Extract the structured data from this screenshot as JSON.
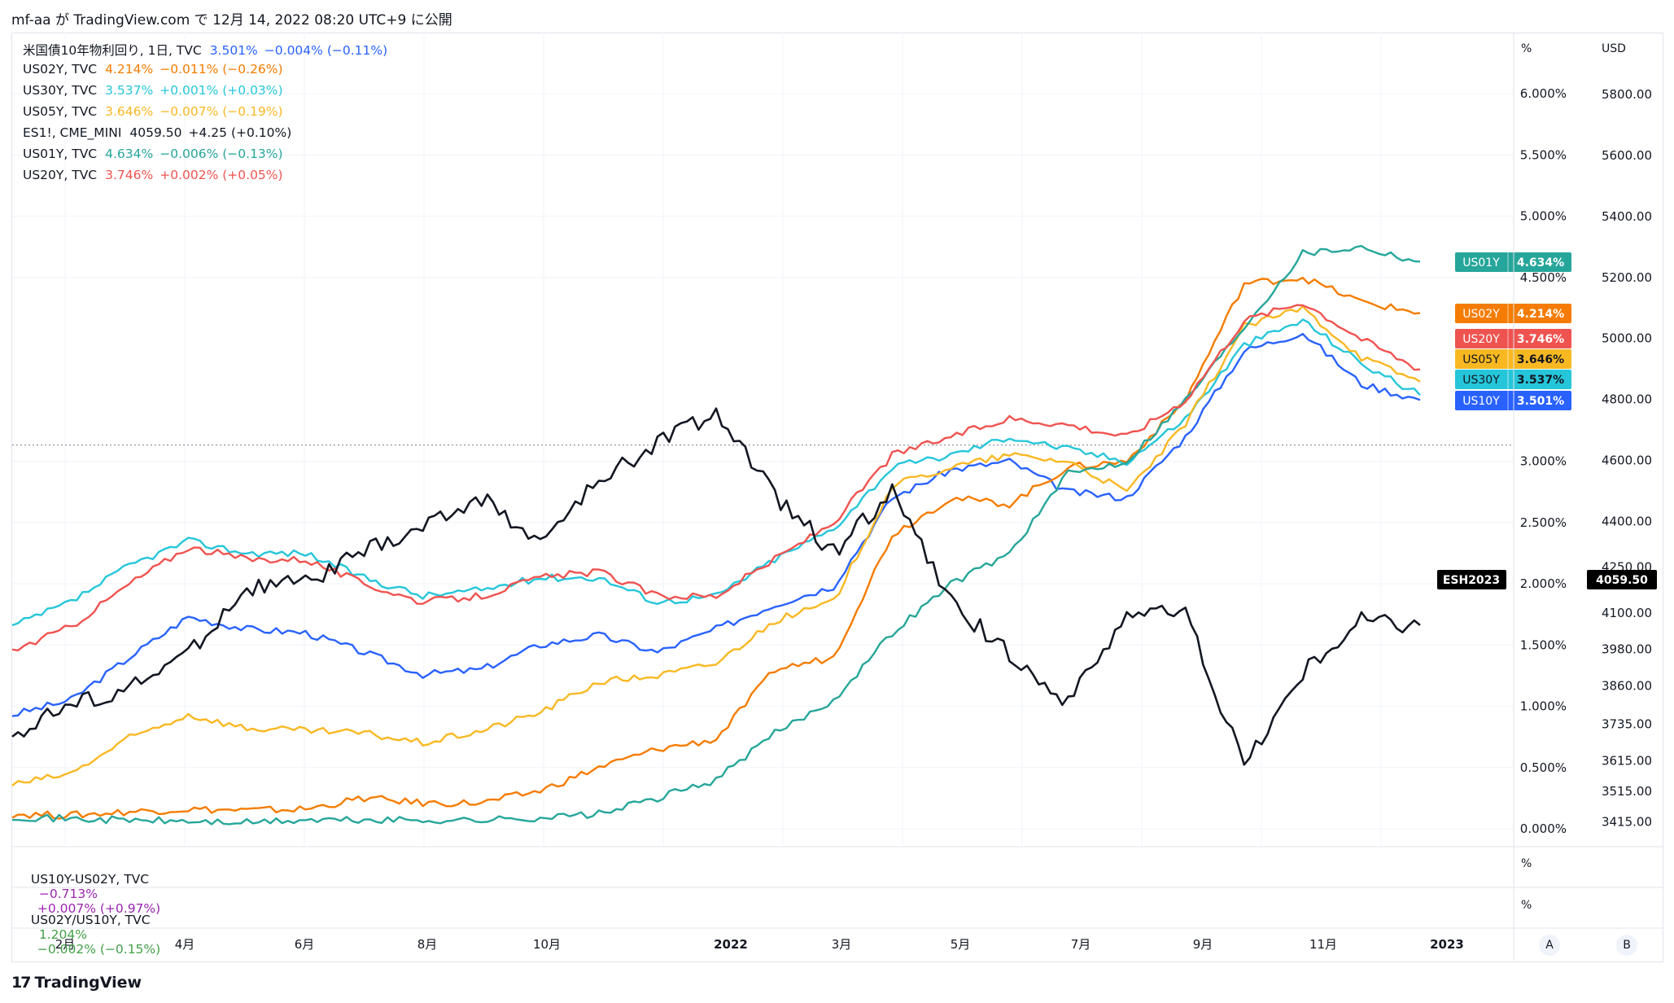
{
  "header": {
    "title": "mf-aa が TradingView.com で 12月 14, 2022 08:20 UTC+9 に公開"
  },
  "legend": [
    {
      "label": "米国債10年物利回り, 1日, TVC",
      "value": "3.501%",
      "change": "−0.004% (−0.11%)",
      "color": "#2962ff"
    },
    {
      "label": "US02Y, TVC",
      "value": "4.214%",
      "change": "−0.011% (−0.26%)",
      "color": "#f57c00"
    },
    {
      "label": "US30Y, TVC",
      "value": "3.537%",
      "change": "+0.001% (+0.03%)",
      "color": "#26c6da"
    },
    {
      "label": "US05Y, TVC",
      "value": "3.646%",
      "change": "−0.007% (−0.19%)",
      "color": "#f9b822"
    },
    {
      "label": "ES1!, CME_MINI",
      "value": "4059.50",
      "change": "+4.25 (+0.10%)",
      "color": "#131722"
    },
    {
      "label": "US01Y, TVC",
      "value": "4.634%",
      "change": "−0.006% (−0.13%)",
      "color": "#26a69a"
    },
    {
      "label": "US20Y, TVC",
      "value": "3.746%",
      "change": "+0.002% (+0.05%)",
      "color": "#ef5350"
    }
  ],
  "panes": [
    {
      "label": "US10Y-US02Y, TVC",
      "value": "−0.713%",
      "change": "+0.007% (+0.97%)",
      "color": "#9c27b0",
      "unit": "%"
    },
    {
      "label": "US02Y/US10Y, TVC",
      "value": "1.204%",
      "change": "−0.002% (−0.15%)",
      "color": "#43a047",
      "unit": "%"
    }
  ],
  "axes": {
    "pct_unit": "%",
    "usd_unit": "USD",
    "pct_ticks": [
      "6.000%",
      "5.500%",
      "5.000%",
      "4.500%",
      "3.000%",
      "2.500%",
      "2.000%",
      "1.500%",
      "1.000%",
      "0.500%",
      "0.000%"
    ],
    "usd_ticks": [
      "5800.00",
      "5600.00",
      "5400.00",
      "5200.00",
      "5000.00",
      "4800.00",
      "4600.00",
      "4400.00",
      "4250.00",
      "4100.00",
      "3980.00",
      "3860.00",
      "3735.00",
      "3615.00",
      "3515.00",
      "3415.00"
    ],
    "x_ticks": [
      "2月",
      "4月",
      "6月",
      "8月",
      "10月",
      "2022",
      "3月",
      "5月",
      "7月",
      "9月",
      "11月",
      "2023"
    ]
  },
  "tags": [
    {
      "name": "US01Y",
      "value": "4.634%",
      "color": "#26a69a",
      "text": "#ffffff"
    },
    {
      "name": "US02Y",
      "value": "4.214%",
      "color": "#f57c00",
      "text": "#ffffff"
    },
    {
      "name": "US20Y",
      "value": "3.746%",
      "color": "#ef5350",
      "text": "#ffffff"
    },
    {
      "name": "US05Y",
      "value": "3.646%",
      "color": "#f9b822",
      "text": "#131722"
    },
    {
      "name": "US30Y",
      "value": "3.537%",
      "color": "#26c6da",
      "text": "#131722"
    },
    {
      "name": "US10Y",
      "value": "3.501%",
      "color": "#2962ff",
      "text": "#ffffff"
    }
  ],
  "es_tag": {
    "name": "ESH2023",
    "value": "4059.50",
    "color": "#000000"
  },
  "buttons": {
    "a": "A",
    "b": "B"
  },
  "footer": {
    "brand": "TradingView"
  },
  "chart_data": {
    "type": "line",
    "x": [
      "2021-01-01",
      "2021-02-01",
      "2021-03-01",
      "2021-04-01",
      "2021-05-01",
      "2021-06-01",
      "2021-07-01",
      "2021-08-01",
      "2021-09-01",
      "2021-10-01",
      "2021-11-01",
      "2021-12-01",
      "2022-01-01",
      "2022-02-01",
      "2022-03-01",
      "2022-04-01",
      "2022-05-01",
      "2022-06-01",
      "2022-07-01",
      "2022-08-01",
      "2022-09-01",
      "2022-10-01",
      "2022-11-01",
      "2022-12-01",
      "2022-12-13"
    ],
    "series": [
      {
        "name": "US10Y",
        "axis": "pct",
        "color": "#2962ff",
        "values": [
          0.93,
          1.05,
          1.4,
          1.73,
          1.63,
          1.6,
          1.44,
          1.26,
          1.3,
          1.5,
          1.58,
          1.44,
          1.63,
          1.83,
          1.98,
          2.7,
          2.93,
          3.0,
          2.75,
          2.7,
          3.2,
          3.9,
          4.05,
          3.63,
          3.5
        ]
      },
      {
        "name": "US02Y",
        "axis": "pct",
        "color": "#f57c00",
        "values": [
          0.12,
          0.11,
          0.14,
          0.16,
          0.15,
          0.16,
          0.25,
          0.21,
          0.21,
          0.31,
          0.5,
          0.65,
          0.73,
          1.3,
          1.4,
          2.4,
          2.7,
          2.65,
          2.95,
          3.0,
          3.5,
          4.45,
          4.5,
          4.3,
          4.21
        ]
      },
      {
        "name": "US30Y",
        "axis": "pct",
        "color": "#26c6da",
        "values": [
          1.65,
          1.85,
          2.15,
          2.35,
          2.25,
          2.25,
          2.05,
          1.9,
          1.95,
          2.05,
          2.05,
          1.85,
          1.9,
          2.2,
          2.45,
          2.95,
          3.05,
          3.2,
          3.1,
          3.0,
          3.35,
          3.95,
          4.15,
          3.8,
          3.54
        ]
      },
      {
        "name": "US05Y",
        "axis": "pct",
        "color": "#f9b822",
        "values": [
          0.36,
          0.45,
          0.74,
          0.93,
          0.82,
          0.8,
          0.78,
          0.7,
          0.8,
          0.95,
          1.2,
          1.25,
          1.35,
          1.7,
          1.85,
          2.8,
          2.95,
          3.05,
          3.0,
          2.75,
          3.3,
          4.1,
          4.25,
          3.85,
          3.65
        ]
      },
      {
        "name": "US01Y",
        "axis": "pct",
        "color": "#26a69a",
        "values": [
          0.1,
          0.08,
          0.07,
          0.06,
          0.05,
          0.07,
          0.07,
          0.07,
          0.07,
          0.09,
          0.12,
          0.25,
          0.4,
          0.78,
          1.05,
          1.6,
          2.0,
          2.25,
          2.9,
          3.0,
          3.5,
          4.1,
          4.7,
          4.75,
          4.63
        ]
      },
      {
        "name": "US20Y",
        "axis": "pct",
        "color": "#ef5350",
        "values": [
          1.45,
          1.65,
          2.0,
          2.3,
          2.2,
          2.2,
          2.0,
          1.85,
          1.9,
          2.05,
          2.1,
          1.9,
          1.9,
          2.2,
          2.5,
          3.05,
          3.2,
          3.35,
          3.3,
          3.2,
          3.5,
          4.15,
          4.3,
          4.0,
          3.75
        ]
      },
      {
        "name": "ES1!",
        "axis": "usd",
        "color": "#131722",
        "values": [
          3700,
          3800,
          3850,
          3970,
          4180,
          4200,
          4300,
          4380,
          4480,
          4330,
          4530,
          4660,
          4760,
          4480,
          4300,
          4500,
          4130,
          3970,
          3800,
          4100,
          4100,
          3600,
          3900,
          4080,
          4059.5
        ]
      }
    ],
    "pct_range": [
      0.0,
      6.3
    ],
    "usd_range": [
      3365,
      5950
    ],
    "reference_line": {
      "axis": "usd",
      "value": 4650
    },
    "grid": true,
    "legend_position": "top-left"
  }
}
